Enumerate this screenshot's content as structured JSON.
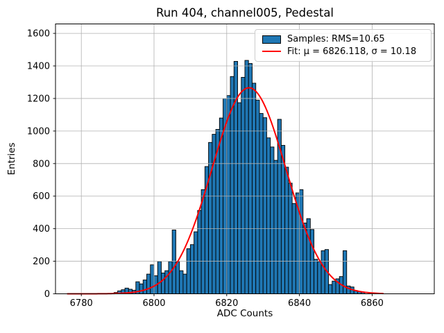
{
  "chart_data": {
    "type": "bar",
    "subtype": "histogram",
    "title": "Run 404, channel005, Pedestal",
    "xlabel": "ADC Counts",
    "ylabel": "Entries",
    "xlim": [
      6772.9,
      6877.1
    ],
    "ylim": [
      0,
      1658
    ],
    "x_ticks": [
      6780,
      6800,
      6820,
      6840,
      6860
    ],
    "y_ticks": [
      0,
      200,
      400,
      600,
      800,
      1000,
      1200,
      1400,
      1600
    ],
    "grid": true,
    "grid_color": "#b0b0b0",
    "bar_color": "#1f77b4",
    "bar_edge_color": "#000000",
    "bin_start": 6789,
    "bin_width": 1,
    "counts": [
      8,
      18,
      25,
      35,
      28,
      22,
      74,
      61,
      85,
      121,
      178,
      111,
      199,
      128,
      142,
      199,
      392,
      199,
      142,
      121,
      277,
      302,
      381,
      512,
      640,
      782,
      930,
      980,
      1010,
      1080,
      1200,
      1218,
      1335,
      1428,
      1174,
      1330,
      1434,
      1415,
      1294,
      1190,
      1108,
      1082,
      958,
      902,
      820,
      1072,
      912,
      778,
      680,
      555,
      620,
      640,
      435,
      462,
      395,
      212,
      198,
      265,
      272,
      57,
      78,
      92,
      106,
      265,
      48,
      42,
      20,
      14,
      10
    ],
    "fit": {
      "type": "gaussian",
      "mu": 6826.118,
      "sigma": 10.18,
      "amplitude": 1266,
      "x_range": [
        6776.2,
        6863.3
      ],
      "color": "#ff0000",
      "linewidth": 2
    },
    "legend": {
      "position": "upper right",
      "entries": [
        {
          "swatch": "patch",
          "color": "#1f77b4",
          "edge_color": "#000000",
          "label": "Samples: RMS=10.65"
        },
        {
          "swatch": "line",
          "color": "#ff0000",
          "label": "Fit: μ = 6826.118, σ = 10.18"
        }
      ]
    }
  }
}
